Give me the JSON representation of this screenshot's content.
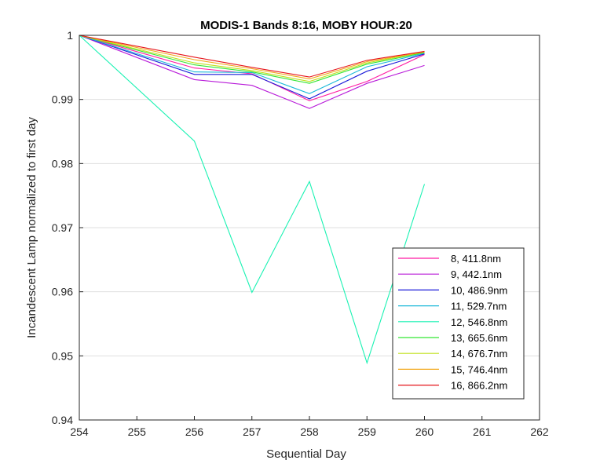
{
  "chart_data": {
    "type": "line",
    "title": "MODIS-1 Bands 8:16, MOBY HOUR:20",
    "xlabel": "Sequential Day",
    "ylabel": "Incandescent Lamp normalized to first day",
    "xlim": [
      254,
      262
    ],
    "ylim": [
      0.94,
      1.0
    ],
    "xticks": [
      "254",
      "255",
      "256",
      "257",
      "258",
      "259",
      "260",
      "261",
      "262"
    ],
    "yticks": [
      "0.94",
      "0.95",
      "0.96",
      "0.97",
      "0.98",
      "0.99",
      "1"
    ],
    "grid": "horizontal",
    "legend_position": "bottom-right",
    "x": [
      254,
      256,
      257,
      258,
      259,
      260
    ],
    "series": [
      {
        "name": "8, 411.8nm",
        "color": "#ff1aa3",
        "values": [
          1.0,
          0.9949,
          0.994,
          0.9898,
          0.9928,
          0.997
        ]
      },
      {
        "name": "9, 442.1nm",
        "color": "#b81ad9",
        "values": [
          1.0,
          0.9931,
          0.9922,
          0.9886,
          0.9925,
          0.9953
        ]
      },
      {
        "name": "10, 486.9nm",
        "color": "#1a1ad9",
        "values": [
          1.0,
          0.9939,
          0.9939,
          0.9901,
          0.9944,
          0.9971
        ]
      },
      {
        "name": "11, 529.7nm",
        "color": "#1ab8d9",
        "values": [
          1.0,
          0.9943,
          0.9942,
          0.9909,
          0.9951,
          0.9972
        ]
      },
      {
        "name": "12, 546.8nm",
        "color": "#1af2b3",
        "values": [
          1.0,
          0.9835,
          0.9599,
          0.9772,
          0.9489,
          0.9768
        ]
      },
      {
        "name": "13, 665.6nm",
        "color": "#33e633",
        "values": [
          1.0,
          0.9954,
          0.9943,
          0.9925,
          0.9955,
          0.9973
        ]
      },
      {
        "name": "14, 676.7nm",
        "color": "#c0e01a",
        "values": [
          1.0,
          0.9957,
          0.9945,
          0.9928,
          0.9957,
          0.9974
        ]
      },
      {
        "name": "15, 746.4nm",
        "color": "#f2a81a",
        "values": [
          1.0,
          0.9962,
          0.9948,
          0.9932,
          0.9959,
          0.9974
        ]
      },
      {
        "name": "16, 866.2nm",
        "color": "#e6141a",
        "values": [
          1.0,
          0.9966,
          0.995,
          0.9935,
          0.9961,
          0.9975
        ]
      }
    ]
  }
}
